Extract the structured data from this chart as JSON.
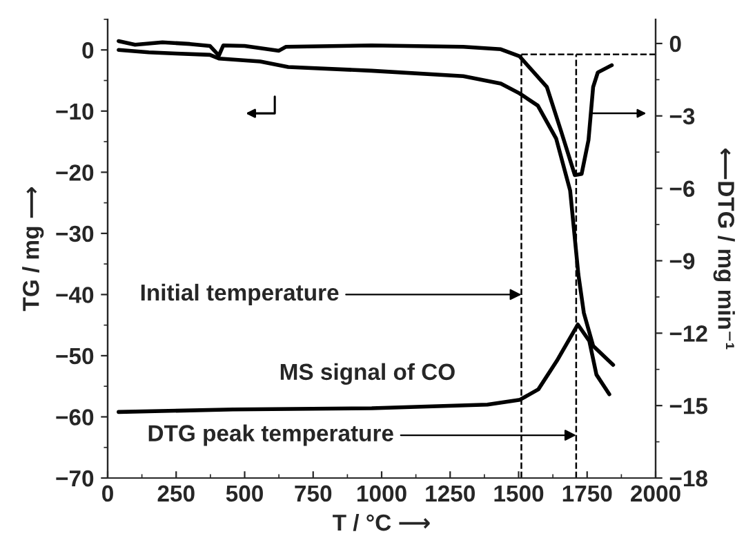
{
  "chart_data": {
    "type": "line",
    "xlabel": "T / °C ⟶",
    "ylabel": "TG / mg ⟶",
    "y2label": "⟵DTG / mg min⁻¹",
    "xlim": [
      0,
      2000
    ],
    "xticks": [
      0,
      250,
      500,
      750,
      1000,
      1250,
      1500,
      1750,
      2000
    ],
    "ylim": [
      -70,
      5
    ],
    "yticks": [
      -70,
      -60,
      -50,
      -40,
      -30,
      -20,
      -10,
      0
    ],
    "y2lim": [
      -18,
      1
    ],
    "y2ticks": [
      -18,
      -15,
      -12,
      -9,
      -6,
      -3,
      0
    ],
    "grid": false,
    "marker": "none",
    "line_style": "solid",
    "series": [
      {
        "color": "#000000",
        "x": [
          40,
          150,
          250,
          373,
          406,
          557,
          659,
          963,
          1298,
          1435,
          1503,
          1570,
          1637,
          1688,
          1718,
          1738,
          1772,
          1845
        ],
        "values": [
          0,
          -0.4,
          -0.6,
          -0.8,
          -1.4,
          -1.9,
          -2.8,
          -3.4,
          -4.3,
          -5.5,
          -7.1,
          -9.1,
          -14.5,
          -23,
          -36.7,
          -43,
          -48.4,
          -51.5
        ]
      },
      {
        "color": "#000000",
        "axis": "y2",
        "x": [
          40,
          100,
          200,
          300,
          373,
          406,
          422,
          500,
          625,
          650,
          963,
          1298,
          1435,
          1503,
          1603,
          1654,
          1705,
          1730,
          1755,
          1772,
          1789,
          1840
        ],
        "values": [
          0.1,
          -0.05,
          0.05,
          -0.02,
          -0.1,
          -0.5,
          -0.08,
          -0.1,
          -0.3,
          -0.14,
          -0.08,
          -0.14,
          -0.24,
          -0.53,
          -1.8,
          -3.6,
          -5.45,
          -5.4,
          -4.0,
          -1.8,
          -1.2,
          -0.9
        ]
      },
      {
        "name": "MS signal of CO",
        "color": "#000000",
        "x": [
          40,
          458,
          964,
          1386,
          1505,
          1572,
          1640,
          1716,
          1758,
          1784,
          1831
        ],
        "values": [
          -59.2,
          -58.8,
          -58.6,
          -58.0,
          -57.2,
          -55.5,
          -50.8,
          -44.9,
          -47.6,
          -53.1,
          -56.3
        ]
      }
    ],
    "ref_lines": [
      {
        "axis": "y2",
        "value": -0.45,
        "line_style": "dashed",
        "color": "#000000"
      },
      {
        "axis": "x",
        "value": 1510,
        "line_style": "dashed",
        "color": "#000000"
      },
      {
        "axis": "x",
        "value": 1710,
        "line_style": "dashed",
        "color": "#000000"
      }
    ],
    "annotations": [
      {
        "text": "Initial temperature",
        "x": 1510,
        "y": -40
      },
      {
        "text": "DTG peak temperature",
        "x": 1710,
        "y": -63
      }
    ]
  }
}
